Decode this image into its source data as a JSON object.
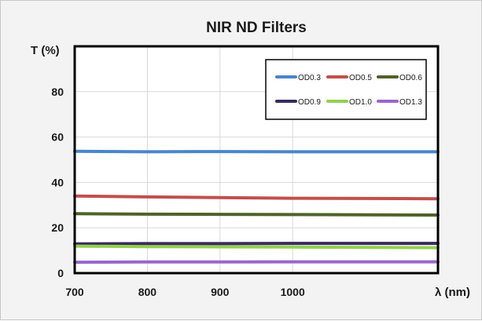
{
  "chart_data": {
    "type": "line",
    "title": "NIR ND Filters",
    "xlabel": "λ (nm)",
    "ylabel": "T (%)",
    "xlim": [
      700,
      1200
    ],
    "ylim": [
      0,
      100
    ],
    "x_ticks": [
      700,
      800,
      900,
      1000
    ],
    "y_ticks": [
      0,
      20,
      40,
      60,
      80
    ],
    "grid": true,
    "legend_position": "top-right",
    "x": [
      700,
      800,
      900,
      1000,
      1200
    ],
    "series": [
      {
        "name": "OD0.3",
        "color": "#4a86c8",
        "values": [
          53.7,
          53.5,
          53.6,
          53.5,
          53.5
        ]
      },
      {
        "name": "OD0.5",
        "color": "#c0504d",
        "values": [
          34.0,
          33.6,
          33.3,
          33.0,
          32.8
        ]
      },
      {
        "name": "OD0.6",
        "color": "#4f6228",
        "values": [
          26.2,
          26.0,
          25.9,
          25.8,
          25.6
        ]
      },
      {
        "name": "OD0.9",
        "color": "#3a2a5c",
        "values": [
          12.9,
          13.0,
          13.0,
          13.1,
          13.1
        ]
      },
      {
        "name": "OD1.0",
        "color": "#92d050",
        "values": [
          11.9,
          11.7,
          11.6,
          11.5,
          11.2
        ]
      },
      {
        "name": "OD1.3",
        "color": "#9966cc",
        "values": [
          4.8,
          4.9,
          4.9,
          5.0,
          5.0
        ]
      }
    ]
  }
}
